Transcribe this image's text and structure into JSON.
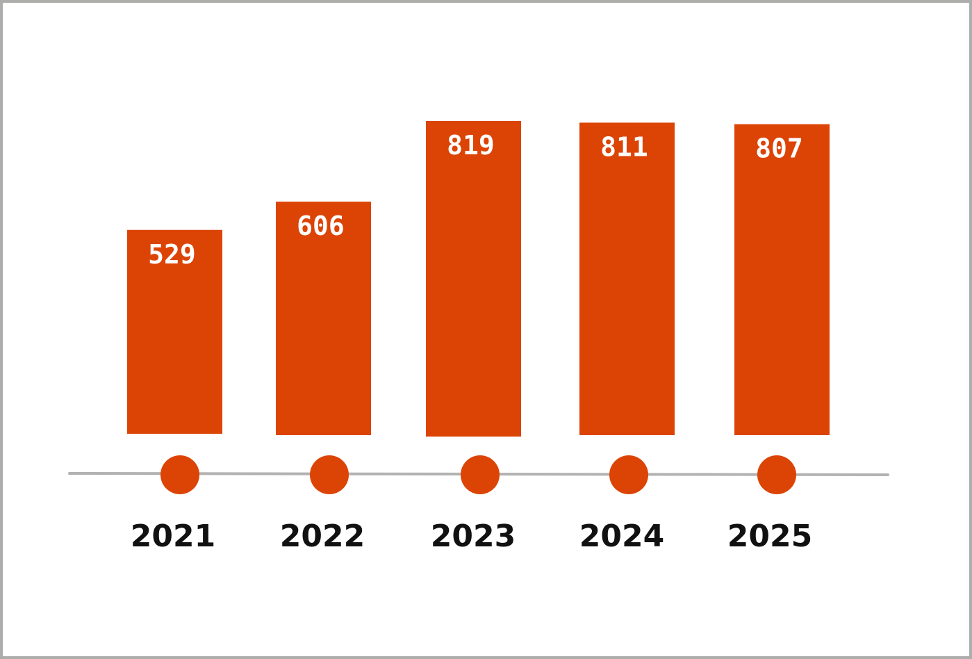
{
  "chart_data": {
    "type": "bar",
    "categories": [
      "2021",
      "2022",
      "2023",
      "2024",
      "2025"
    ],
    "values": [
      529,
      606,
      819,
      811,
      807
    ],
    "title": "",
    "xlabel": "",
    "ylabel": "",
    "data_labels": [
      "529",
      "606",
      "819",
      "811",
      "807"
    ],
    "grid": false,
    "legend": "none"
  },
  "colors": {
    "bar": "#dc4405",
    "marker": "#dc4405",
    "axis_line": "#b2b2b2",
    "frame_border": "#adadab",
    "value_text": "#ffffff",
    "year_text": "#111111"
  }
}
